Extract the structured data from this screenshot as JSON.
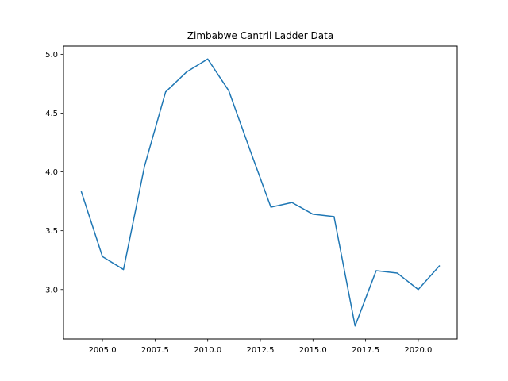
{
  "chart_data": {
    "type": "line",
    "title": "Zimbabwe Cantril Ladder Data",
    "xlabel": "",
    "ylabel": "",
    "xlim": [
      2003.15,
      2021.85
    ],
    "ylim": [
      2.58,
      5.07
    ],
    "x_ticks": [
      2005.0,
      2007.5,
      2010.0,
      2012.5,
      2015.0,
      2017.5,
      2020.0
    ],
    "x_tick_labels": [
      "2005.0",
      "2007.5",
      "2010.0",
      "2012.5",
      "2015.0",
      "2017.5",
      "2020.0"
    ],
    "y_ticks": [
      3.0,
      3.5,
      4.0,
      4.5,
      5.0
    ],
    "y_tick_labels": [
      "3.0",
      "3.5",
      "4.0",
      "4.5",
      "5.0"
    ],
    "grid": false,
    "series": [
      {
        "color": "#1f77b4",
        "x": [
          2004,
          2005,
          2006,
          2007,
          2008,
          2009,
          2010,
          2011,
          2012,
          2013,
          2014,
          2015,
          2016,
          2017,
          2018,
          2019,
          2020,
          2021
        ],
        "y": [
          3.83,
          3.28,
          3.17,
          4.05,
          4.68,
          4.85,
          4.96,
          4.69,
          4.19,
          3.7,
          3.74,
          3.64,
          3.62,
          2.69,
          3.16,
          3.14,
          3.0,
          3.2
        ]
      }
    ]
  }
}
